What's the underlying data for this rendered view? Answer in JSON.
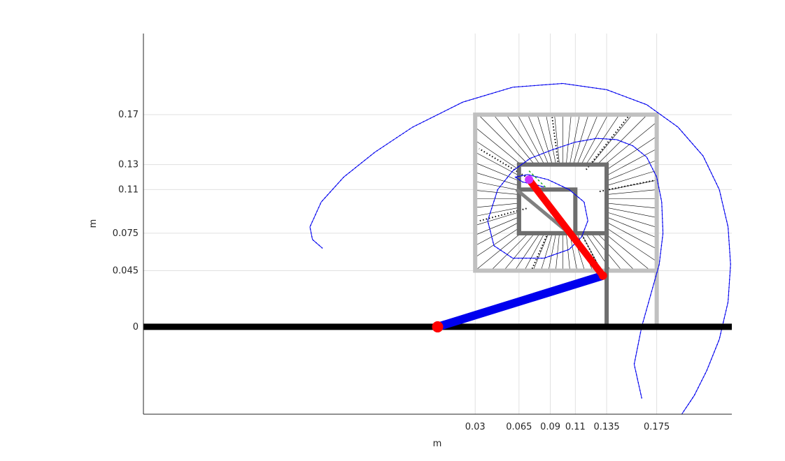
{
  "chart_data": {
    "type": "line",
    "title": "",
    "xlabel": "m",
    "ylabel": "m",
    "xlim": [
      -0.235,
      0.235
    ],
    "ylim": [
      -0.07,
      0.235
    ],
    "xticks": [
      0.03,
      0.065,
      0.09,
      0.11,
      0.135,
      0.175
    ],
    "xtick_labels": [
      "0.03",
      "0.065",
      "0.09",
      "0.11",
      "0.135",
      "0.175"
    ],
    "yticks": [
      0,
      0.045,
      0.075,
      0.11,
      0.13,
      0.17
    ],
    "ytick_labels": [
      "0",
      "0.045",
      "0.075",
      "0.11",
      "0.13",
      "0.17"
    ],
    "grid": true,
    "colors": {
      "trajectory": "#0000ee",
      "active_link": "#ff0000",
      "ghost_link": "#808080",
      "outer_boundary": "#c0c0c0",
      "inner_boundary": "#6e6e6e",
      "ground_line": "#000000",
      "hatch_lines": "#000000",
      "target_marker": "#cc33ff",
      "projection": "#22aa22"
    },
    "ground_line": {
      "x": [
        -0.235,
        0.235
      ],
      "y": [
        0,
        0
      ]
    },
    "outer_boundary": {
      "x": [
        0.03,
        0.175
      ],
      "y": [
        0.045,
        0.17
      ]
    },
    "inner_boundary": {
      "x": [
        0.065,
        0.135
      ],
      "y": [
        0.075,
        0.13
      ]
    },
    "inner_square": {
      "x": [
        0.065,
        0.11
      ],
      "y": [
        0.075,
        0.11
      ]
    },
    "boundary_spine": {
      "x": [
        0.135,
        0.135
      ],
      "y": [
        0,
        0.13
      ]
    },
    "link1": {
      "from": [
        0,
        0
      ],
      "to": [
        0.132,
        0.041
      ]
    },
    "link2": {
      "from": [
        0.132,
        0.041
      ],
      "to": [
        0.073,
        0.118
      ]
    },
    "ghost_link": {
      "from": [
        0.105,
        0.075
      ],
      "to": [
        0.063,
        0.11
      ]
    },
    "base_joint": [
      0,
      0
    ],
    "elbow_joint": [
      0.132,
      0.041
    ],
    "end_effector": [
      0.073,
      0.118
    ],
    "projection": {
      "from": [
        0.073,
        0.125
      ],
      "to": [
        0.087,
        0.111
      ]
    },
    "outer_spiral": {
      "x": [
        0.195,
        0.205,
        0.215,
        0.225,
        0.232,
        0.234,
        0.232,
        0.225,
        0.212,
        0.192,
        0.167,
        0.135,
        0.1,
        0.06,
        0.02,
        -0.02,
        -0.05,
        -0.075,
        -0.093,
        -0.102,
        -0.1,
        -0.092
      ],
      "y": [
        -0.07,
        -0.055,
        -0.035,
        -0.01,
        0.02,
        0.05,
        0.08,
        0.11,
        0.137,
        0.16,
        0.178,
        0.19,
        0.195,
        0.192,
        0.18,
        0.16,
        0.14,
        0.12,
        0.1,
        0.08,
        0.07,
        0.063
      ]
    },
    "inner_spiral": {
      "x": [
        0.163,
        0.157,
        0.163,
        0.17,
        0.177,
        0.18,
        0.179,
        0.175,
        0.167,
        0.156,
        0.143,
        0.127,
        0.11,
        0.092,
        0.074,
        0.06,
        0.048,
        0.04,
        0.045,
        0.06,
        0.085,
        0.105,
        0.115,
        0.12,
        0.117,
        0.105,
        0.088,
        0.072,
        0.062,
        0.068,
        0.078,
        0.085
      ],
      "y": [
        -0.057,
        -0.03,
        0.0,
        0.025,
        0.05,
        0.075,
        0.1,
        0.12,
        0.136,
        0.145,
        0.15,
        0.151,
        0.148,
        0.142,
        0.135,
        0.125,
        0.11,
        0.085,
        0.065,
        0.055,
        0.055,
        0.062,
        0.072,
        0.085,
        0.1,
        0.11,
        0.118,
        0.122,
        0.12,
        0.116,
        0.114,
        0.112
      ]
    }
  }
}
